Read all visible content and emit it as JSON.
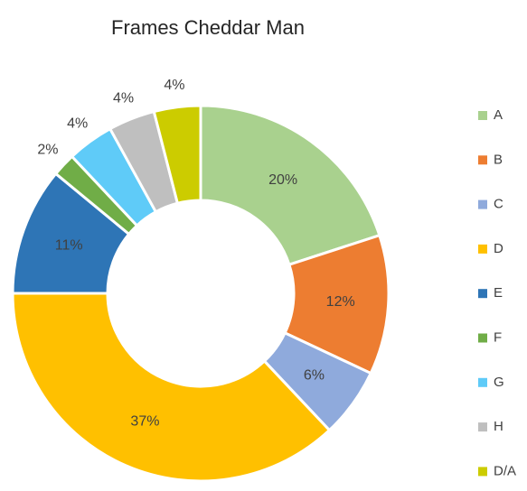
{
  "chart_data": {
    "type": "donut",
    "title": "Frames Cheddar Man",
    "categories": [
      "A",
      "B",
      "C",
      "D",
      "E",
      "F",
      "G",
      "H",
      "D/A"
    ],
    "values": [
      20,
      12,
      6,
      37,
      11,
      2,
      4,
      4,
      4
    ],
    "value_labels": [
      "20%",
      "12%",
      "6%",
      "37%",
      "11%",
      "2%",
      "4%",
      "4%",
      "4%"
    ],
    "colors": [
      "#a9d18e",
      "#ed7d31",
      "#8faadc",
      "#ffc000",
      "#2e75b6",
      "#70ad47",
      "#5fcbf8",
      "#bfbfbf",
      "#cccc00"
    ],
    "legend": "right"
  }
}
